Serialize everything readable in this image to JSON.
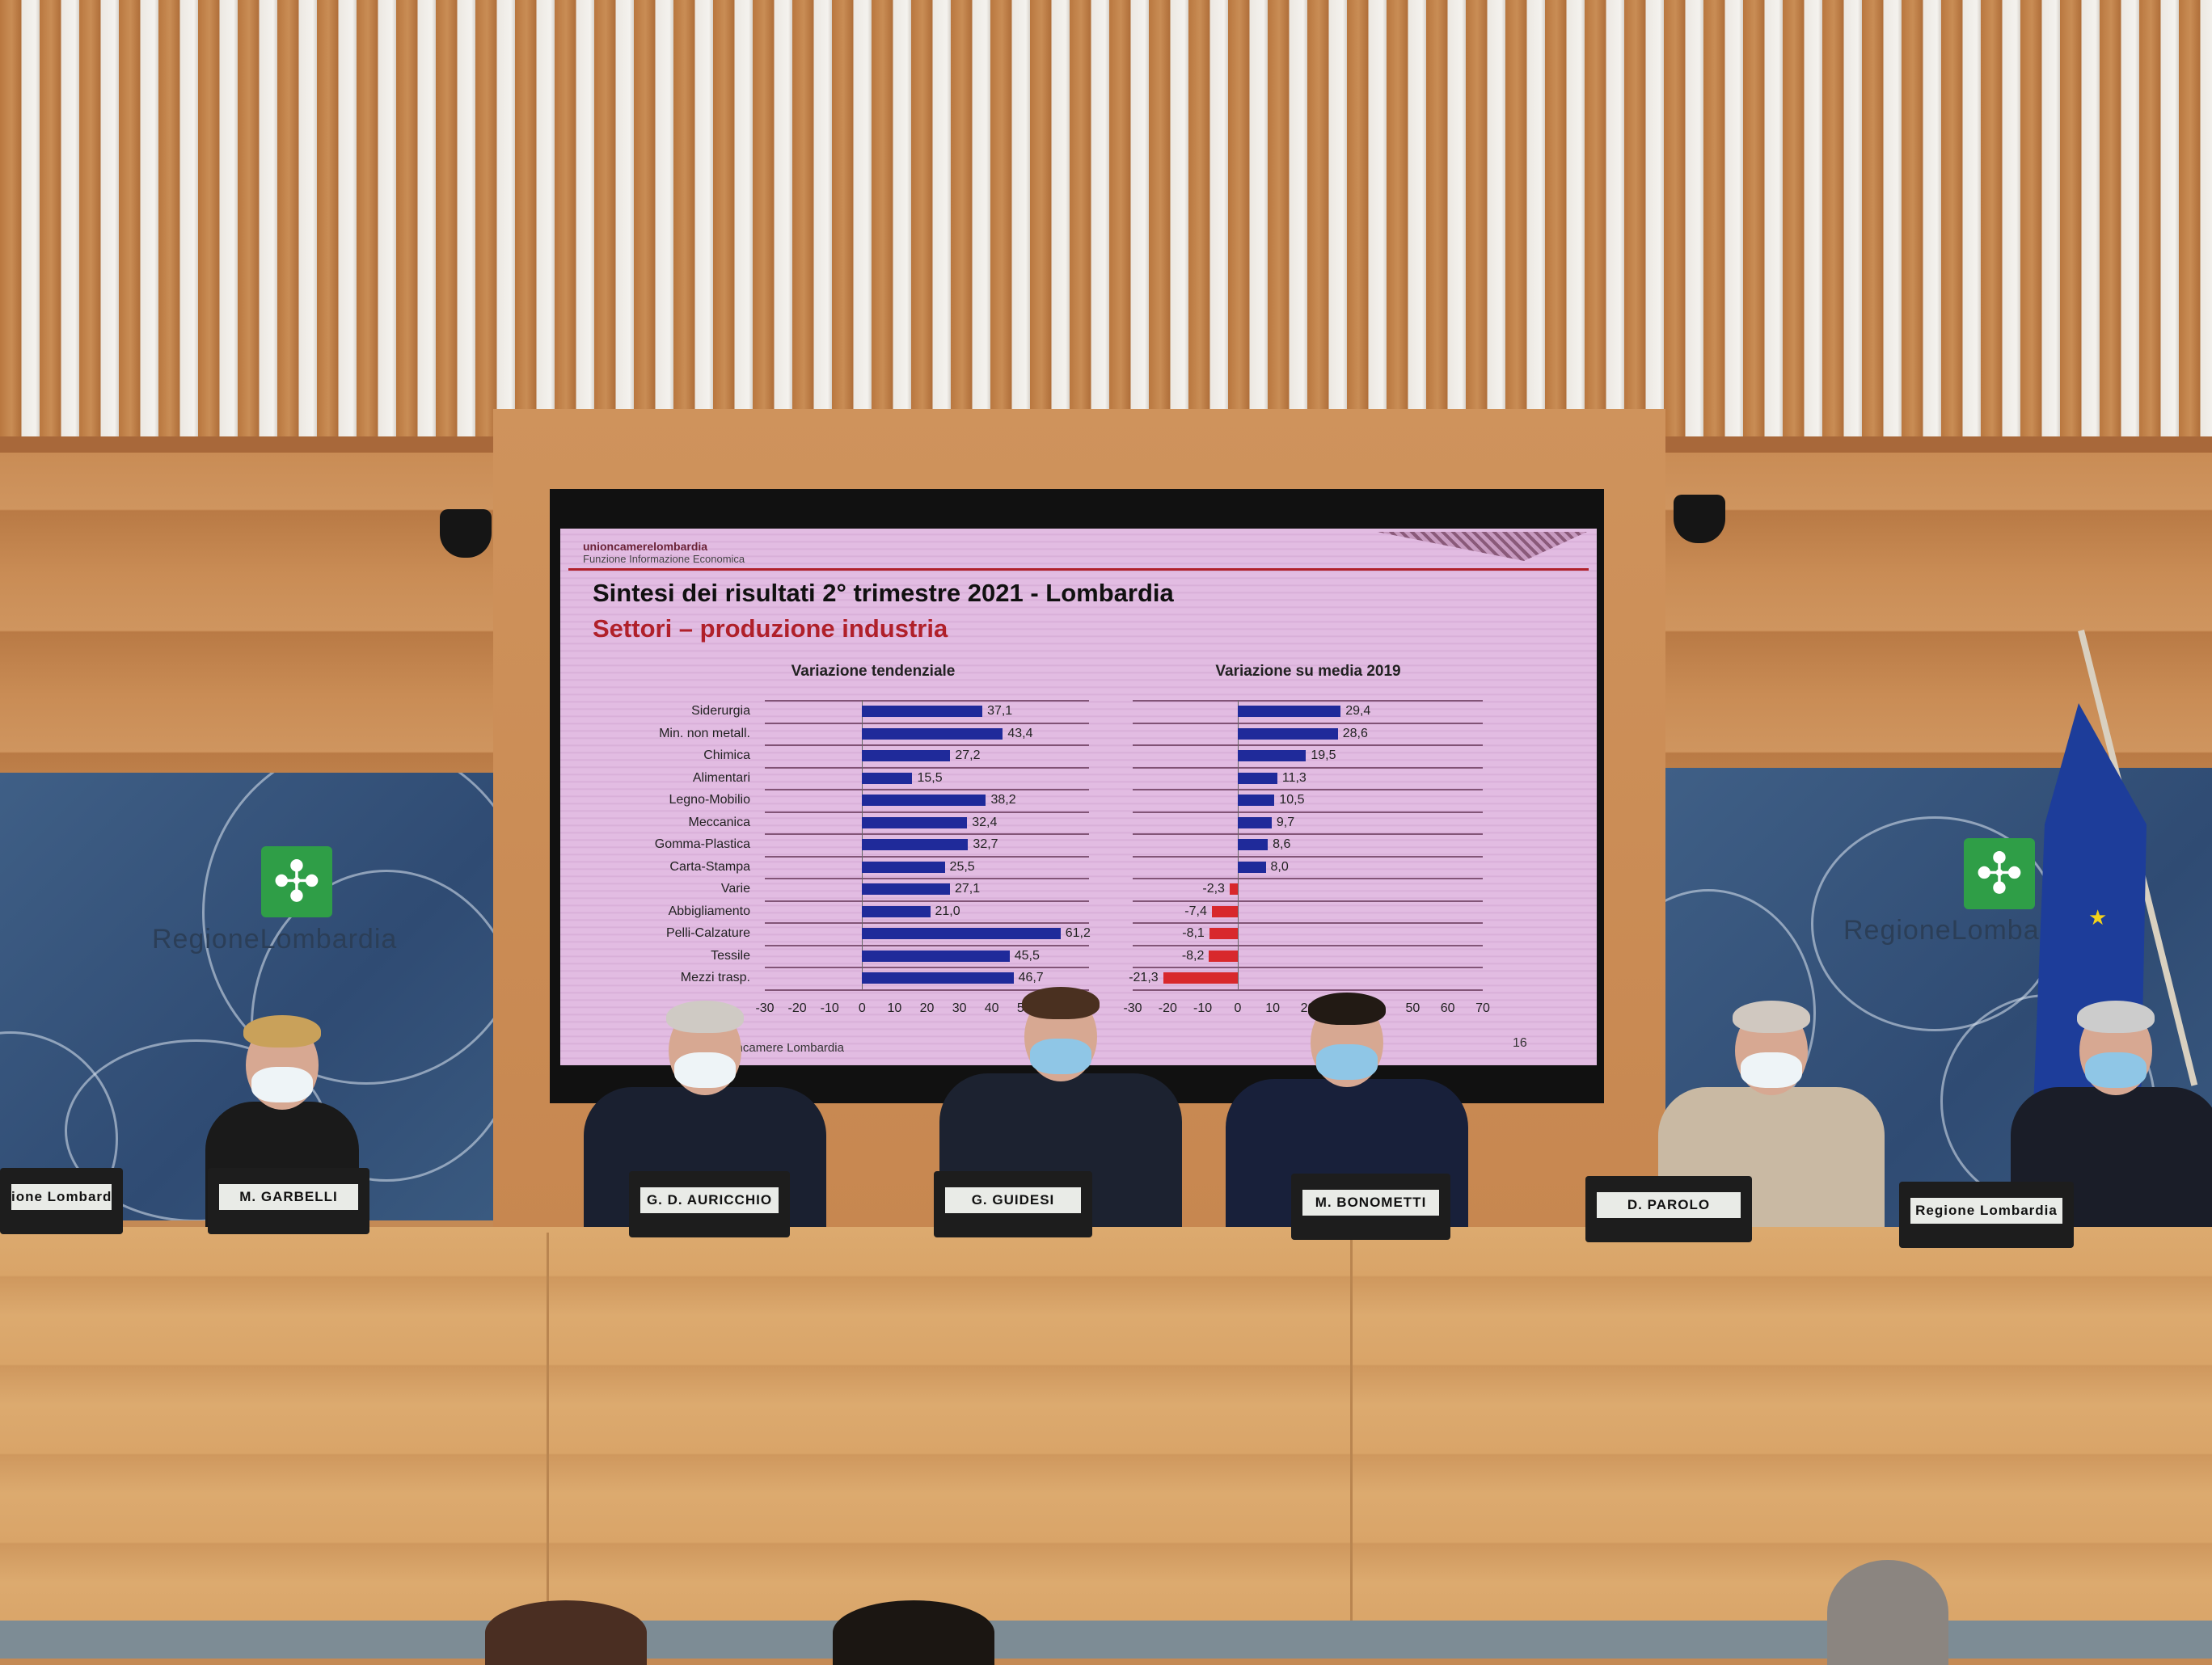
{
  "scene": {
    "banner_text": "RegioneLombardia",
    "colors": {
      "slide_bg": "#e2bce2",
      "positive_bar": "#1f2a9a",
      "negative_bar": "#d8282c",
      "subtitle": "#b0202a",
      "logo_green": "#2f9e47"
    }
  },
  "slide": {
    "org": "unioncamerelombardia",
    "org_sub": "Funzione Informazione Economica",
    "title": "Sintesi dei risultati 2° trimestre 2021 - Lombardia",
    "subtitle": "Settori – produzione industria",
    "source": "Fonte: Unioncamere Lombardia",
    "page_number": "16"
  },
  "nameplates": [
    "ione Lombardia",
    "M. GARBELLI",
    "G. D. AURICCHIO",
    "G. GUIDESI",
    "M. BONOMETTI",
    "D. PAROLO",
    "Regione Lombardia"
  ],
  "chart_data": [
    {
      "type": "bar",
      "orientation": "horizontal",
      "title": "Variazione tendenziale",
      "categories": [
        "Siderurgia",
        "Min. non metall.",
        "Chimica",
        "Alimentari",
        "Legno-Mobilio",
        "Meccanica",
        "Gomma-Plastica",
        "Carta-Stampa",
        "Varie",
        "Abbigliamento",
        "Pelli-Calzature",
        "Tessile",
        "Mezzi trasp."
      ],
      "values": [
        37.1,
        43.4,
        27.2,
        15.5,
        38.2,
        32.4,
        32.7,
        25.5,
        27.1,
        21.0,
        61.2,
        45.5,
        46.7
      ],
      "labels": [
        "37,1",
        "43,4",
        "27,2",
        "15,5",
        "38,2",
        "32,4",
        "32,7",
        "25,5",
        "27,1",
        "21,0",
        "61,2",
        "45,5",
        "46,7"
      ],
      "xlim": [
        -30,
        70
      ],
      "ticks": [
        "-30",
        "-20",
        "-10",
        "0",
        "10",
        "20",
        "30",
        "40",
        "50",
        "60",
        "70"
      ],
      "grid": true
    },
    {
      "type": "bar",
      "orientation": "horizontal",
      "title": "Variazione su media 2019",
      "categories": [
        "Siderurgia",
        "Min. non metall.",
        "Chimica",
        "Alimentari",
        "Legno-Mobilio",
        "Meccanica",
        "Gomma-Plastica",
        "Carta-Stampa",
        "Varie",
        "Abbigliamento",
        "Pelli-Calzature",
        "Tessile",
        "Mezzi trasp."
      ],
      "values": [
        29.4,
        28.6,
        19.5,
        11.3,
        10.5,
        9.7,
        8.6,
        8.0,
        -2.3,
        -7.4,
        -8.1,
        -8.2,
        -21.3
      ],
      "labels": [
        "29,4",
        "28,6",
        "19,5",
        "11,3",
        "10,5",
        "9,7",
        "8,6",
        "8,0",
        "-2,3",
        "-7,4",
        "-8,1",
        "-8,2",
        "-21,3"
      ],
      "xlim": [
        -30,
        70
      ],
      "ticks": [
        "-30",
        "-20",
        "-10",
        "0",
        "10",
        "20",
        "30",
        "40",
        "50",
        "60",
        "70"
      ],
      "grid": true
    }
  ]
}
